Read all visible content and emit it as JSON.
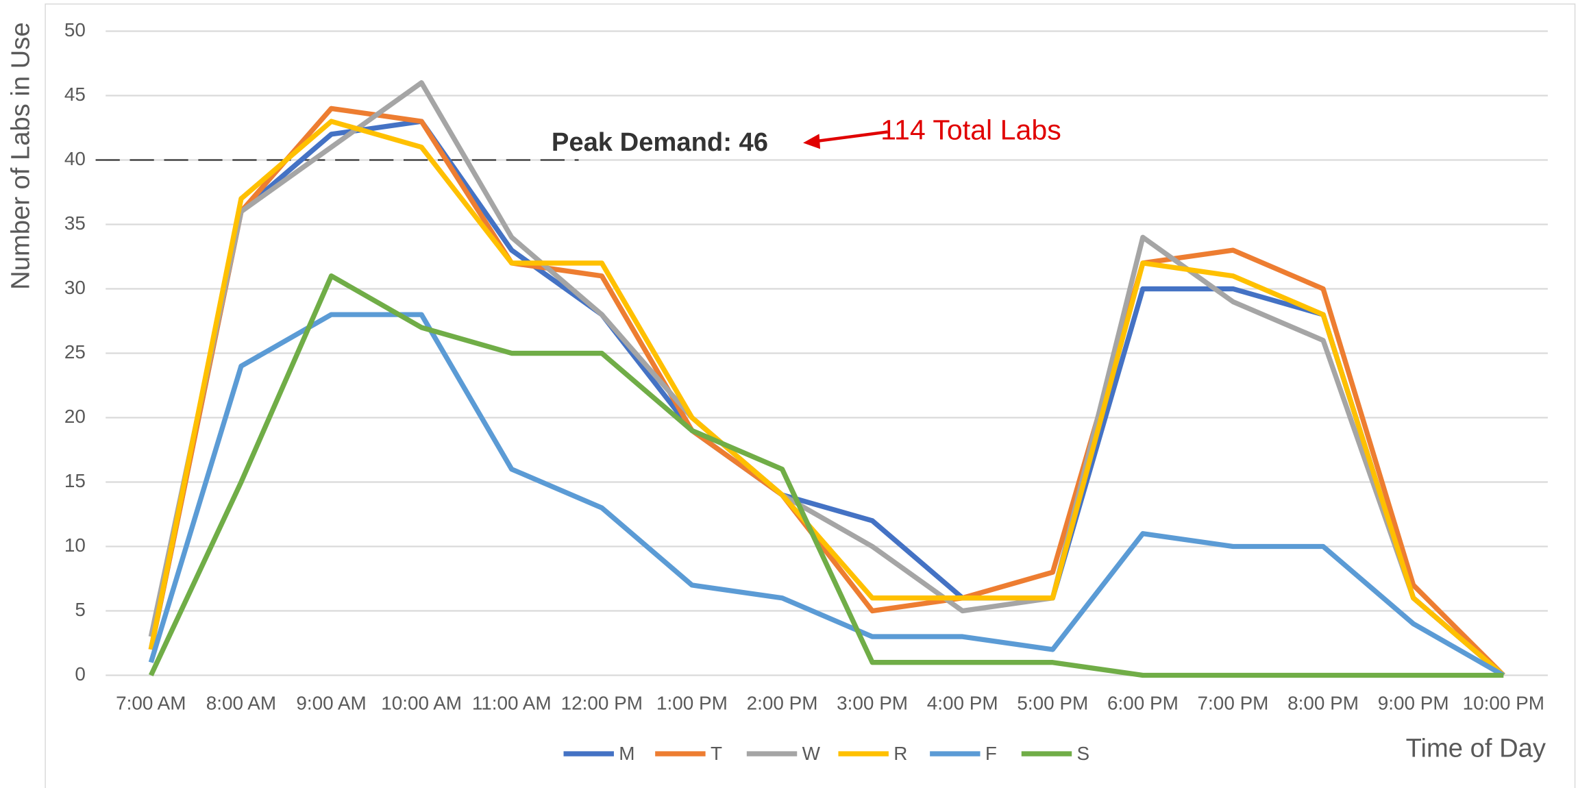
{
  "chart_data": {
    "type": "line",
    "x_label": "Time of Day",
    "y_label": "Number of Labs in Use",
    "categories": [
      "7:00 AM",
      "8:00 AM",
      "9:00 AM",
      "10:00 AM",
      "11:00 AM",
      "12:00 PM",
      "1:00 PM",
      "2:00 PM",
      "3:00 PM",
      "4:00 PM",
      "5:00 PM",
      "6:00 PM",
      "7:00 PM",
      "8:00 PM",
      "9:00 PM",
      "10:00 PM"
    ],
    "series": [
      {
        "name": "M",
        "color": "#4472c4",
        "values": [
          2,
          36,
          42,
          43,
          33,
          28,
          19,
          14,
          12,
          6,
          6,
          30,
          30,
          28,
          6,
          0
        ]
      },
      {
        "name": "T",
        "color": "#ed7d31",
        "values": [
          2,
          36,
          44,
          43,
          32,
          31,
          19,
          14,
          5,
          6,
          8,
          32,
          33,
          30,
          7,
          0
        ]
      },
      {
        "name": "W",
        "color": "#a5a5a5",
        "values": [
          3,
          36,
          41,
          46,
          34,
          28,
          20,
          14,
          10,
          5,
          6,
          34,
          29,
          26,
          6,
          0
        ]
      },
      {
        "name": "R",
        "color": "#ffc000",
        "values": [
          2,
          37,
          43,
          41,
          32,
          32,
          20,
          14,
          6,
          6,
          6,
          32,
          31,
          28,
          6,
          0
        ]
      },
      {
        "name": "F",
        "color": "#5b9bd5",
        "values": [
          1,
          24,
          28,
          28,
          16,
          13,
          7,
          6,
          3,
          3,
          2,
          11,
          10,
          10,
          4,
          0
        ]
      },
      {
        "name": "S",
        "color": "#70ad47",
        "values": [
          0,
          15,
          31,
          27,
          25,
          25,
          19,
          16,
          1,
          1,
          1,
          0,
          0,
          0,
          0,
          0
        ]
      }
    ],
    "ylim": [
      0,
      50
    ],
    "yticks": [
      0,
      5,
      10,
      15,
      20,
      25,
      30,
      35,
      40,
      45,
      50
    ],
    "grid": true,
    "reference_line": 40,
    "annotations": [
      "Peak Demand: 46",
      "114 Total Labs"
    ],
    "legend": "bottom"
  }
}
